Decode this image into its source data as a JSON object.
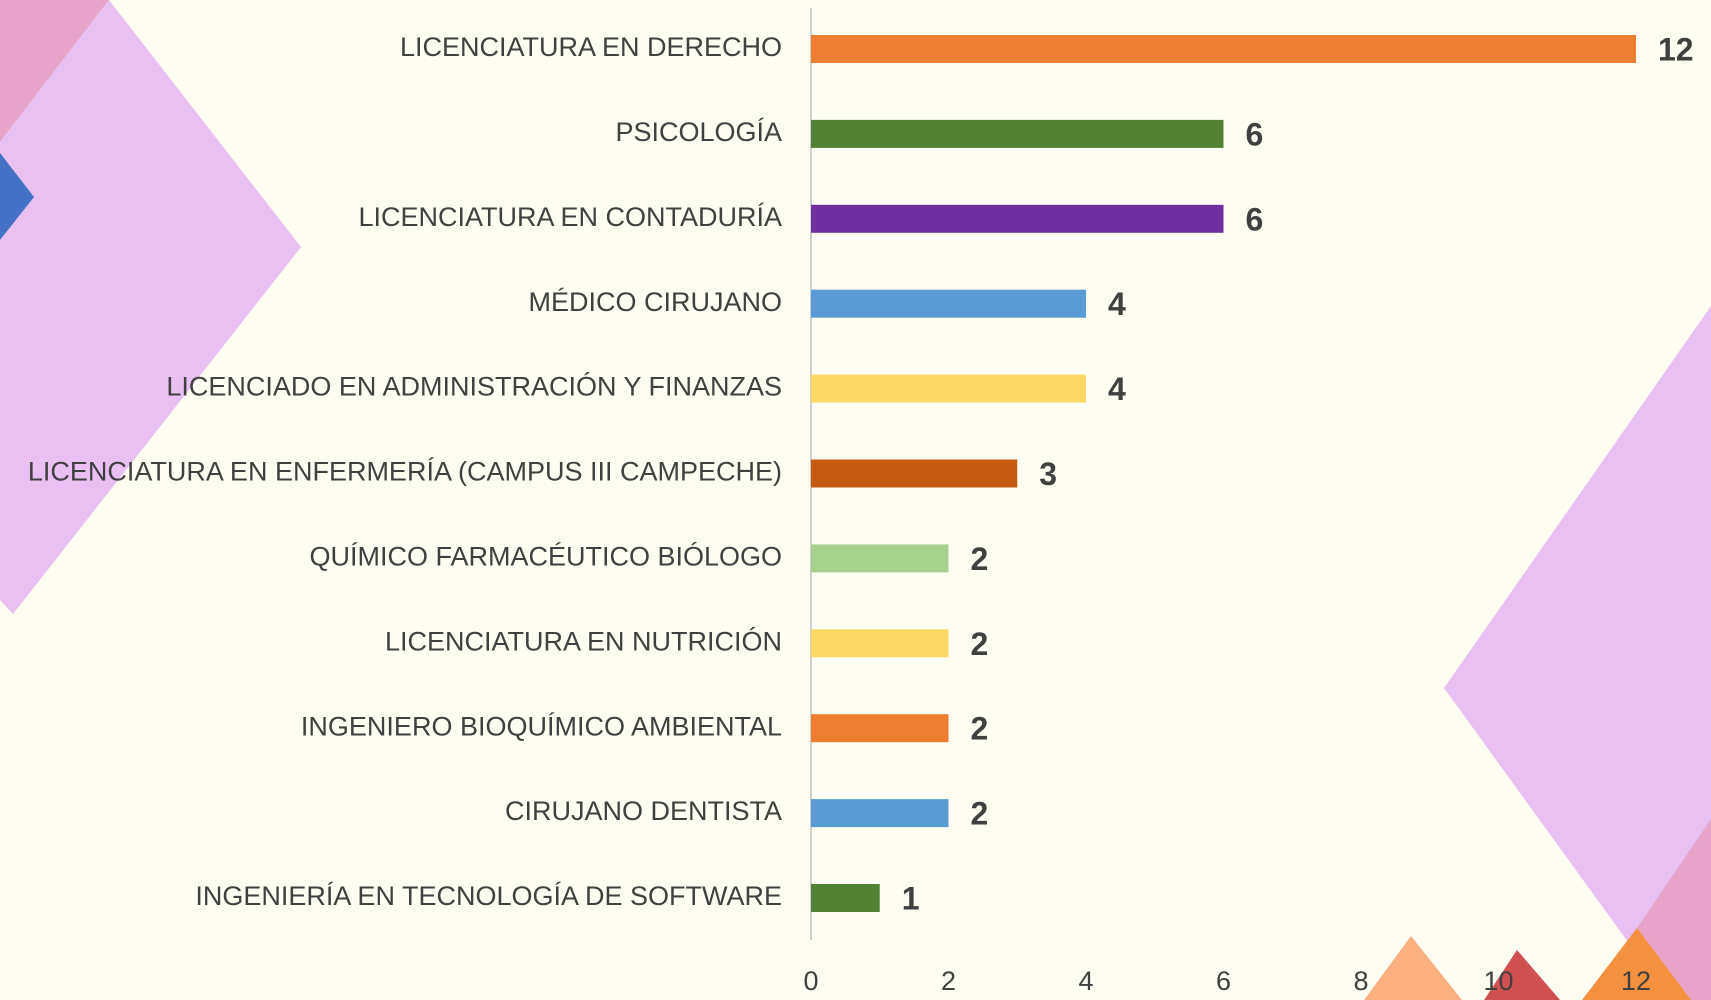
{
  "chart_data": {
    "type": "bar",
    "orientation": "horizontal",
    "categories": [
      "LICENCIATURA EN DERECHO",
      "PSICOLOGÍA",
      "LICENCIATURA EN CONTADURÍA",
      "MÉDICO CIRUJANO",
      "LICENCIADO EN ADMINISTRACIÓN Y FINANZAS",
      "LICENCIATURA EN ENFERMERÍA (CAMPUS III CAMPECHE)",
      "QUÍMICO FARMACÉUTICO BIÓLOGO",
      "LICENCIATURA EN NUTRICIÓN",
      "INGENIERO BIOQUÍMICO AMBIENTAL",
      "CIRUJANO DENTISTA",
      "INGENIERÍA EN TECNOLOGÍA DE SOFTWARE"
    ],
    "values": [
      12,
      6,
      6,
      4,
      4,
      3,
      2,
      2,
      2,
      2,
      1
    ],
    "colors": [
      "#ed7d31",
      "#548235",
      "#7030a0",
      "#5b9bd5",
      "#ffd966",
      "#c55a11",
      "#a9d18e",
      "#ffd966",
      "#ed7d31",
      "#5b9bd5",
      "#548235"
    ],
    "xlim": [
      0,
      12
    ],
    "xticks": [
      0,
      2,
      4,
      6,
      8,
      10,
      12
    ]
  }
}
